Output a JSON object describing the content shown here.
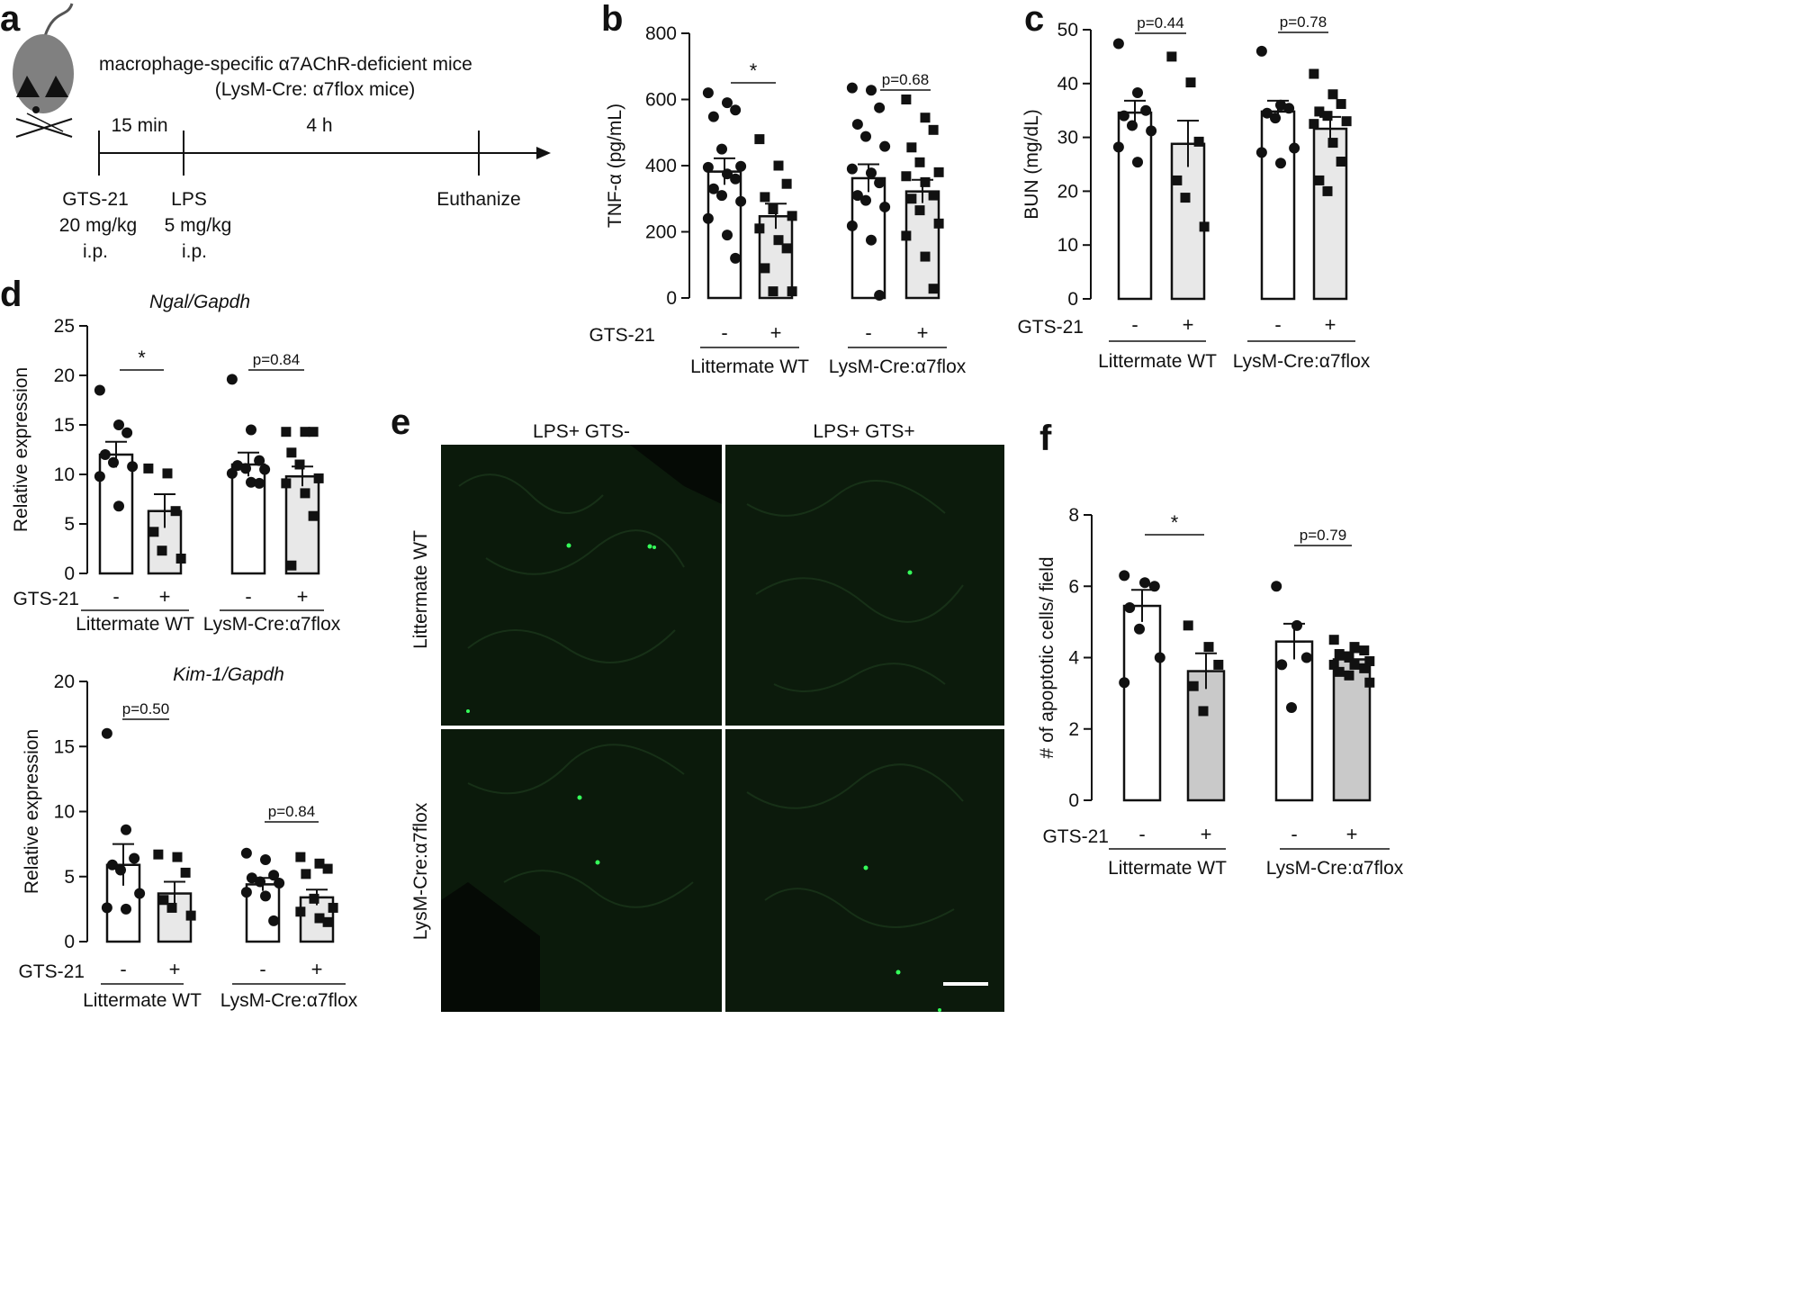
{
  "panel_letters": {
    "a": "a",
    "b": "b",
    "c": "c",
    "d": "d",
    "e": "e",
    "f": "f"
  },
  "colors": {
    "ink": "#111111",
    "bar_gts_plus": "#e8e8e8",
    "bar_gts_plus_f": "#c9c9c9",
    "micro_bg": "#0b1a0b",
    "micro_signal": "#35ff5a"
  },
  "panel_a": {
    "title_line1": "macrophage-specific α7AChR-deficient mice",
    "title_line2": "(LysM-Cre: α7flox mice)",
    "interval_1": "15 min",
    "interval_2": "4 h",
    "step1": [
      "GTS-21",
      "20 mg/kg",
      "i.p."
    ],
    "step2": [
      "LPS",
      "5 mg/kg",
      "i.p."
    ],
    "step3": [
      "Euthanize"
    ],
    "icon": "mouse-icon"
  },
  "panel_e": {
    "col_labels": [
      "LPS+ GTS-",
      "LPS+ GTS+"
    ],
    "row_labels": [
      "Littermate WT",
      "LysM-Cre:α7flox"
    ]
  },
  "chart_data": [
    {
      "id": "b",
      "type": "bar",
      "title": "",
      "ylabel": "TNF-α (pg/mL)",
      "ylim": [
        0,
        800
      ],
      "yticks": [
        "0",
        "200",
        "400",
        "600",
        "800"
      ],
      "treatment_label": "GTS-21",
      "categories": [
        "-",
        "+",
        "-",
        "+"
      ],
      "groups": [
        "Littermate WT",
        "LysM-Cre:α7flox"
      ],
      "values": [
        382,
        247,
        362,
        322
      ],
      "sem": [
        40,
        38,
        42,
        35
      ],
      "points": [
        [
          620,
          590,
          568,
          548,
          450,
          398,
          395,
          375,
          360,
          330,
          310,
          292,
          240,
          190,
          120
        ],
        [
          480,
          400,
          345,
          305,
          268,
          248,
          210,
          175,
          150,
          90,
          20,
          20
        ],
        [
          635,
          628,
          575,
          525,
          488,
          458,
          390,
          378,
          348,
          310,
          295,
          275,
          218,
          175,
          8
        ],
        [
          600,
          545,
          508,
          455,
          410,
          380,
          368,
          350,
          310,
          300,
          265,
          225,
          188,
          125,
          28
        ]
      ],
      "markers": [
        "circle",
        "square",
        "circle",
        "square"
      ],
      "annotations": [
        {
          "text": "*",
          "pair": [
            0,
            1
          ]
        },
        {
          "text": "p=0.68",
          "pair": [
            2,
            3
          ]
        }
      ]
    },
    {
      "id": "c",
      "type": "bar",
      "title": "",
      "ylabel": "BUN (mg/dL)",
      "ylim": [
        0,
        50
      ],
      "yticks": [
        "0",
        "10",
        "20",
        "30",
        "40",
        "50"
      ],
      "treatment_label": "GTS-21",
      "categories": [
        "-",
        "+",
        "-",
        "+"
      ],
      "groups": [
        "Littermate WT",
        "LysM-Cre:α7flox"
      ],
      "values": [
        34.6,
        28.8,
        34.8,
        31.6
      ],
      "sem": [
        2.2,
        4.3,
        2.0,
        2.2
      ],
      "points": [
        [
          47.4,
          38.3,
          35.0,
          34.0,
          32.2,
          31.2,
          28.2,
          25.4
        ],
        [
          45.0,
          40.2,
          29.2,
          22.0,
          18.8,
          13.4
        ],
        [
          46.0,
          36.0,
          35.4,
          34.5,
          33.6,
          28.0,
          27.2,
          25.2
        ],
        [
          41.8,
          38.0,
          36.2,
          34.8,
          34.0,
          33.0,
          32.5,
          29.0,
          25.5,
          22.0,
          20.0
        ]
      ],
      "markers": [
        "circle",
        "square",
        "circle",
        "square"
      ],
      "annotations": [
        {
          "text": "p=0.44",
          "pair": [
            0,
            1
          ]
        },
        {
          "text": "p=0.78",
          "pair": [
            2,
            3
          ]
        }
      ]
    },
    {
      "id": "d1",
      "type": "bar",
      "title": "Ngal/Gapdh",
      "ylabel": "Relative expression",
      "ylim": [
        0,
        25
      ],
      "yticks": [
        "0",
        "5",
        "10",
        "15",
        "20",
        "25"
      ],
      "treatment_label": "GTS-21",
      "categories": [
        "-",
        "+",
        "-",
        "+"
      ],
      "groups": [
        "Littermate WT",
        "LysM-Cre:α7flox"
      ],
      "values": [
        12.0,
        6.3,
        11.0,
        9.8
      ],
      "sem": [
        1.3,
        1.7,
        1.2,
        1.0
      ],
      "points": [
        [
          18.5,
          15.0,
          14.2,
          12.0,
          11.2,
          10.8,
          9.8,
          6.8
        ],
        [
          10.6,
          10.1,
          6.3,
          4.2,
          2.3,
          1.5
        ],
        [
          19.6,
          14.5,
          11.4,
          10.9,
          10.6,
          10.5,
          10.1,
          9.2,
          9.1
        ],
        [
          14.3,
          14.3,
          14.3,
          12.2,
          11.0,
          9.6,
          9.1,
          8.1,
          5.8,
          0.8
        ]
      ],
      "markers": [
        "circle",
        "square",
        "circle",
        "square"
      ],
      "annotations": [
        {
          "text": "*",
          "pair": [
            0,
            1
          ]
        },
        {
          "text": "p=0.84",
          "pair": [
            2,
            3
          ]
        }
      ]
    },
    {
      "id": "d2",
      "type": "bar",
      "title": "Kim-1/Gapdh",
      "ylabel": "Relative expression",
      "ylim": [
        0,
        20
      ],
      "yticks": [
        "0",
        "5",
        "10",
        "15",
        "20"
      ],
      "treatment_label": "GTS-21",
      "categories": [
        "-",
        "+",
        "-",
        "+"
      ],
      "groups": [
        "Littermate WT",
        "LysM-Cre:α7flox"
      ],
      "values": [
        5.9,
        3.7,
        4.4,
        3.4
      ],
      "sem": [
        1.6,
        0.9,
        0.5,
        0.6
      ],
      "points": [
        [
          16.0,
          8.6,
          6.4,
          5.9,
          5.5,
          3.7,
          2.6,
          2.5
        ],
        [
          6.7,
          6.5,
          5.3,
          3.2,
          2.6,
          2.0
        ],
        [
          6.8,
          6.3,
          5.1,
          4.9,
          4.6,
          4.5,
          3.8,
          3.5,
          1.6
        ],
        [
          6.5,
          6.0,
          5.6,
          5.2,
          3.3,
          2.6,
          2.3,
          1.8,
          1.5
        ]
      ],
      "markers": [
        "circle",
        "square",
        "circle",
        "square"
      ],
      "annotations": [
        {
          "text": "p=0.50",
          "pair": [
            0,
            1
          ]
        },
        {
          "text": "p=0.84",
          "pair": [
            2,
            3
          ]
        }
      ]
    },
    {
      "id": "f",
      "type": "bar",
      "title": "",
      "ylabel": "# of apoptotic cells/ field",
      "ylim": [
        0,
        8
      ],
      "yticks": [
        "0",
        "2",
        "4",
        "6",
        "8"
      ],
      "treatment_label": "GTS-21",
      "categories": [
        "-",
        "+",
        "-",
        "+"
      ],
      "groups": [
        "Littermate WT",
        "LysM-Cre:α7flox"
      ],
      "values": [
        5.45,
        3.62,
        4.45,
        3.95
      ],
      "sem": [
        0.45,
        0.5,
        0.5,
        0.2
      ],
      "points": [
        [
          6.3,
          6.1,
          6.0,
          5.4,
          4.8,
          4.0,
          3.3
        ],
        [
          4.9,
          4.3,
          3.8,
          3.2,
          2.5
        ],
        [
          6.0,
          4.9,
          4.0,
          3.8,
          2.6
        ],
        [
          4.5,
          4.3,
          4.2,
          4.1,
          4.0,
          3.9,
          3.8,
          3.8,
          3.7,
          3.6,
          3.5,
          3.3
        ]
      ],
      "markers": [
        "circle",
        "square",
        "circle",
        "square"
      ],
      "annotations": [
        {
          "text": "*",
          "pair": [
            0,
            1
          ]
        },
        {
          "text": "p=0.79",
          "pair": [
            2,
            3
          ]
        }
      ]
    }
  ]
}
